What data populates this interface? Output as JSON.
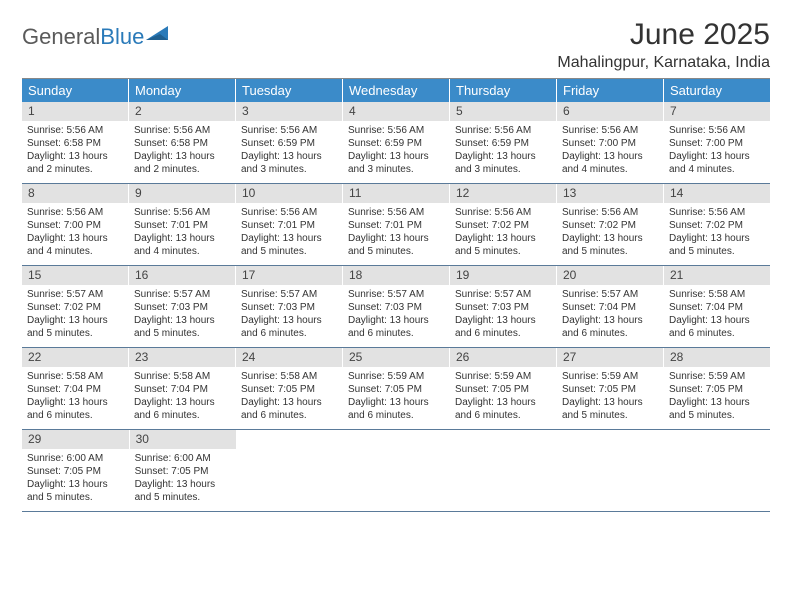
{
  "logo": {
    "text1": "General",
    "text2": "Blue"
  },
  "title": "June 2025",
  "location": "Mahalingpur, Karnataka, India",
  "colors": {
    "header_bg": "#3b8bc9",
    "header_text": "#ffffff",
    "daynum_bg": "#e2e2e2",
    "border": "#5a7a99",
    "logo_gray": "#5a5a5a",
    "logo_blue": "#2a7ab9"
  },
  "weekdays": [
    "Sunday",
    "Monday",
    "Tuesday",
    "Wednesday",
    "Thursday",
    "Friday",
    "Saturday"
  ],
  "weeks": [
    [
      {
        "n": "1",
        "sr": "5:56 AM",
        "ss": "6:58 PM",
        "dl": "13 hours and 2 minutes."
      },
      {
        "n": "2",
        "sr": "5:56 AM",
        "ss": "6:58 PM",
        "dl": "13 hours and 2 minutes."
      },
      {
        "n": "3",
        "sr": "5:56 AM",
        "ss": "6:59 PM",
        "dl": "13 hours and 3 minutes."
      },
      {
        "n": "4",
        "sr": "5:56 AM",
        "ss": "6:59 PM",
        "dl": "13 hours and 3 minutes."
      },
      {
        "n": "5",
        "sr": "5:56 AM",
        "ss": "6:59 PM",
        "dl": "13 hours and 3 minutes."
      },
      {
        "n": "6",
        "sr": "5:56 AM",
        "ss": "7:00 PM",
        "dl": "13 hours and 4 minutes."
      },
      {
        "n": "7",
        "sr": "5:56 AM",
        "ss": "7:00 PM",
        "dl": "13 hours and 4 minutes."
      }
    ],
    [
      {
        "n": "8",
        "sr": "5:56 AM",
        "ss": "7:00 PM",
        "dl": "13 hours and 4 minutes."
      },
      {
        "n": "9",
        "sr": "5:56 AM",
        "ss": "7:01 PM",
        "dl": "13 hours and 4 minutes."
      },
      {
        "n": "10",
        "sr": "5:56 AM",
        "ss": "7:01 PM",
        "dl": "13 hours and 5 minutes."
      },
      {
        "n": "11",
        "sr": "5:56 AM",
        "ss": "7:01 PM",
        "dl": "13 hours and 5 minutes."
      },
      {
        "n": "12",
        "sr": "5:56 AM",
        "ss": "7:02 PM",
        "dl": "13 hours and 5 minutes."
      },
      {
        "n": "13",
        "sr": "5:56 AM",
        "ss": "7:02 PM",
        "dl": "13 hours and 5 minutes."
      },
      {
        "n": "14",
        "sr": "5:56 AM",
        "ss": "7:02 PM",
        "dl": "13 hours and 5 minutes."
      }
    ],
    [
      {
        "n": "15",
        "sr": "5:57 AM",
        "ss": "7:02 PM",
        "dl": "13 hours and 5 minutes."
      },
      {
        "n": "16",
        "sr": "5:57 AM",
        "ss": "7:03 PM",
        "dl": "13 hours and 5 minutes."
      },
      {
        "n": "17",
        "sr": "5:57 AM",
        "ss": "7:03 PM",
        "dl": "13 hours and 6 minutes."
      },
      {
        "n": "18",
        "sr": "5:57 AM",
        "ss": "7:03 PM",
        "dl": "13 hours and 6 minutes."
      },
      {
        "n": "19",
        "sr": "5:57 AM",
        "ss": "7:03 PM",
        "dl": "13 hours and 6 minutes."
      },
      {
        "n": "20",
        "sr": "5:57 AM",
        "ss": "7:04 PM",
        "dl": "13 hours and 6 minutes."
      },
      {
        "n": "21",
        "sr": "5:58 AM",
        "ss": "7:04 PM",
        "dl": "13 hours and 6 minutes."
      }
    ],
    [
      {
        "n": "22",
        "sr": "5:58 AM",
        "ss": "7:04 PM",
        "dl": "13 hours and 6 minutes."
      },
      {
        "n": "23",
        "sr": "5:58 AM",
        "ss": "7:04 PM",
        "dl": "13 hours and 6 minutes."
      },
      {
        "n": "24",
        "sr": "5:58 AM",
        "ss": "7:05 PM",
        "dl": "13 hours and 6 minutes."
      },
      {
        "n": "25",
        "sr": "5:59 AM",
        "ss": "7:05 PM",
        "dl": "13 hours and 6 minutes."
      },
      {
        "n": "26",
        "sr": "5:59 AM",
        "ss": "7:05 PM",
        "dl": "13 hours and 6 minutes."
      },
      {
        "n": "27",
        "sr": "5:59 AM",
        "ss": "7:05 PM",
        "dl": "13 hours and 5 minutes."
      },
      {
        "n": "28",
        "sr": "5:59 AM",
        "ss": "7:05 PM",
        "dl": "13 hours and 5 minutes."
      }
    ],
    [
      {
        "n": "29",
        "sr": "6:00 AM",
        "ss": "7:05 PM",
        "dl": "13 hours and 5 minutes."
      },
      {
        "n": "30",
        "sr": "6:00 AM",
        "ss": "7:05 PM",
        "dl": "13 hours and 5 minutes."
      },
      null,
      null,
      null,
      null,
      null
    ]
  ],
  "labels": {
    "sunrise": "Sunrise:",
    "sunset": "Sunset:",
    "daylight": "Daylight:"
  }
}
